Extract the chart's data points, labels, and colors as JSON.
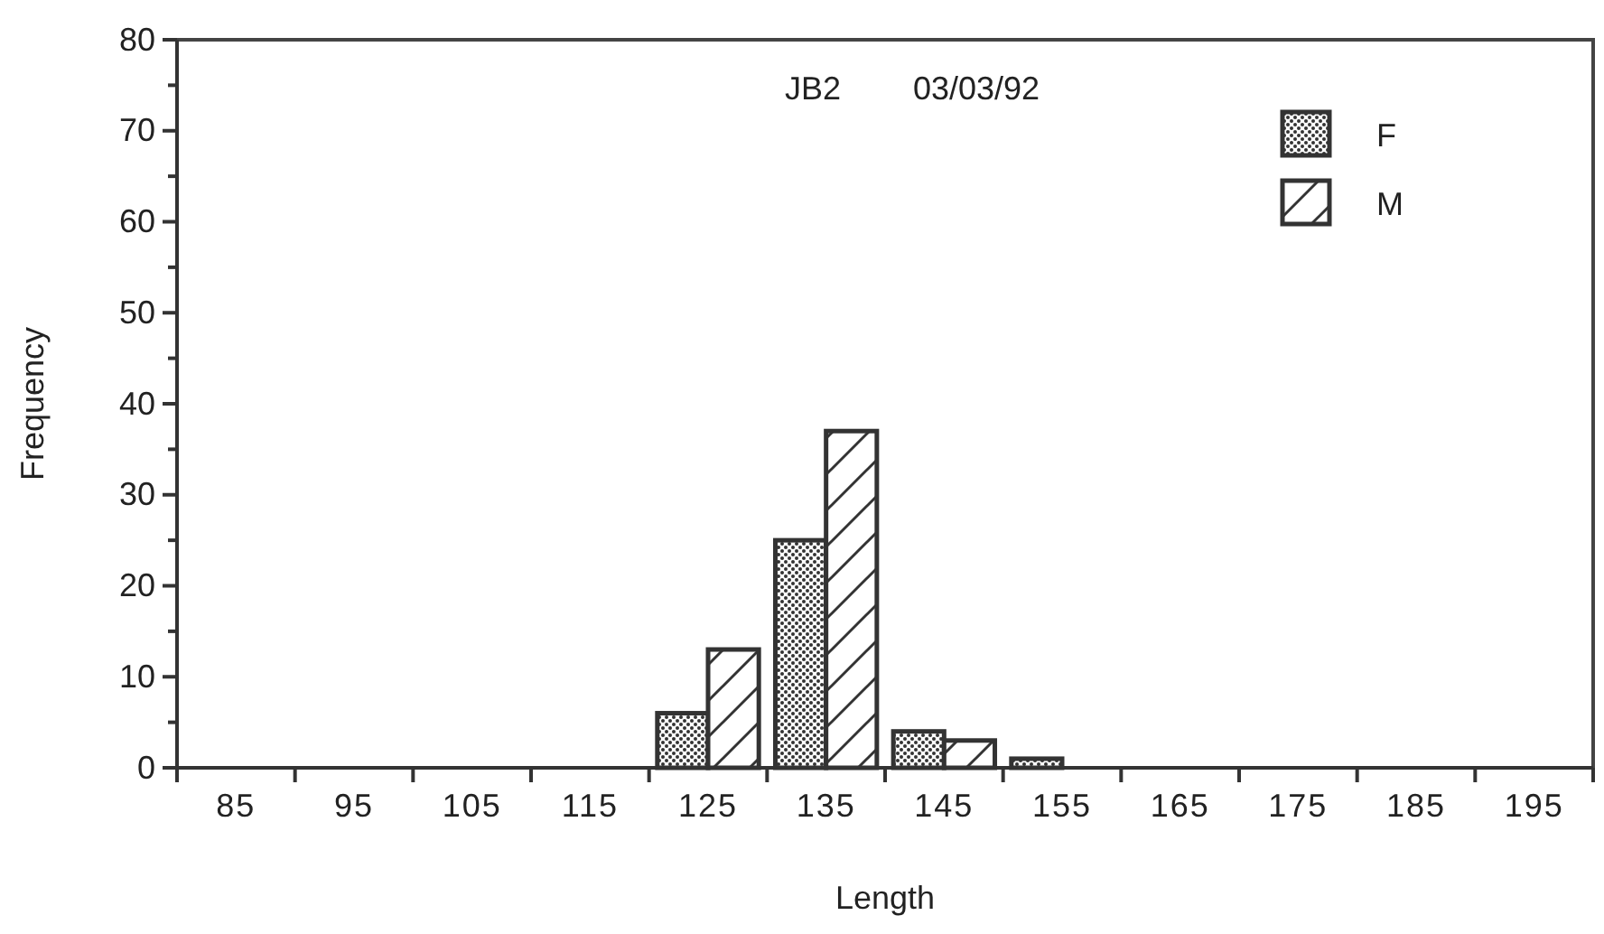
{
  "chart_data": {
    "type": "bar",
    "title": "JB2        03/03/92",
    "xlabel": "Length",
    "ylabel": "Frequency",
    "categories": [
      "85",
      "95",
      "105",
      "115",
      "125",
      "135",
      "145",
      "155",
      "165",
      "175",
      "185",
      "195"
    ],
    "series": [
      {
        "name": "F",
        "color": "#333333",
        "values": [
          0,
          0,
          0,
          0,
          6,
          25,
          4,
          1,
          0,
          0,
          0,
          0
        ]
      },
      {
        "name": "M",
        "color": "#333333",
        "values": [
          0,
          0,
          0,
          0,
          13,
          37,
          3,
          0,
          0,
          0,
          0,
          0
        ]
      }
    ],
    "ylim": [
      0,
      80
    ],
    "yticks": [
      0,
      {
        "value": 5,
        "label": null
      },
      10,
      {
        "value": 15,
        "label": null
      },
      20,
      {
        "value": 25,
        "label": null
      },
      30,
      {
        "value": 35,
        "label": null
      },
      40,
      {
        "value": 45,
        "label": null
      },
      50,
      {
        "value": 55,
        "label": null
      },
      60,
      {
        "value": 65,
        "label": null
      },
      70,
      {
        "value": 75,
        "label": null
      },
      80
    ],
    "grid": false,
    "legend": "top right"
  }
}
